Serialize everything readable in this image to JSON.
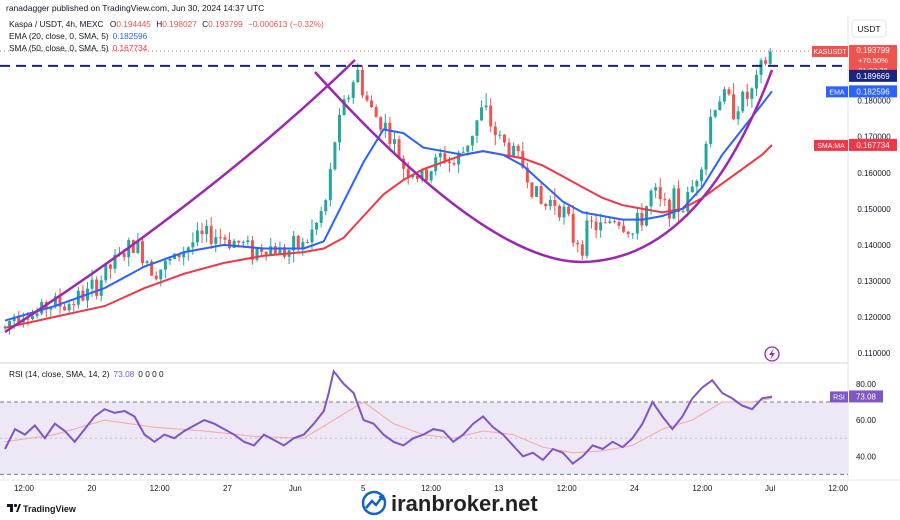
{
  "header": {
    "published": "ranadagger published on TradingView.com, Jun 30, 2024 14:37 UTC",
    "symbol_line": {
      "name": "Kaspa / USDT, 4h, MEXC",
      "o_label": "O",
      "o": "0.194445",
      "h_label": "H",
      "h": "0.198027",
      "c_label": "C",
      "c": "0.193799",
      "chg": "−0.000613 (−0.32%)"
    },
    "ema_line": {
      "label": "EMA (20, close, 0, SMA, 5)",
      "value": "0.182596"
    },
    "sma_line": {
      "label": "SMA (50, close, 0, SMA, 5)",
      "value": "0.167734"
    },
    "rsi_line": {
      "label": "RSI (14, close, SMA, 14, 2)",
      "value": "73.08",
      "extra": "0 0 0 0"
    }
  },
  "currency_button": "USDT",
  "price_tags": {
    "symbol": "KASUSDT",
    "last": "0.193799",
    "pct": "+70.50%",
    "countdown": "01:22:38",
    "line_level": "0.189669",
    "ema_tag": "EMA",
    "ema_value": "0.182596",
    "sma_tag": "SMA:MA",
    "sma_value": "0.167734",
    "rsi_tag": "RSI",
    "rsi_value": "73.08"
  },
  "footer": {
    "logo": "TradingView",
    "watermark": "iranbroker.net"
  },
  "colors": {
    "up": "#26a69a",
    "down": "#ef5350",
    "ema": "#2962ff",
    "sma": "#f23645",
    "arc": "#9c27b0",
    "level": "#1a237e",
    "rsi": "#7e57c2",
    "rsi_band": "#ede7f6"
  },
  "chart_data": [
    {
      "type": "candlestick",
      "title": "Kaspa / USDT, 4h, MEXC",
      "y_ticks": [
        "0.180000",
        "0.170000",
        "0.160000",
        "0.150000",
        "0.140000",
        "0.130000",
        "0.120000",
        "0.110000"
      ],
      "ylim": [
        0.1075,
        0.2035
      ],
      "x_ticks": [
        "12:00",
        "20",
        "12:00",
        "27",
        "Jun",
        "5",
        "12:00",
        "13",
        "12:00",
        "24",
        "12:00",
        "Jul",
        "12:00"
      ],
      "horizontal_level": 0.189669,
      "close_path": [
        [
          0,
          0.117
        ],
        [
          10,
          0.121
        ],
        [
          20,
          0.122
        ],
        [
          30,
          0.12
        ],
        [
          40,
          0.123
        ],
        [
          50,
          0.124
        ],
        [
          60,
          0.123
        ],
        [
          70,
          0.125
        ],
        [
          80,
          0.126
        ],
        [
          90,
          0.128
        ],
        [
          100,
          0.132
        ],
        [
          110,
          0.135
        ],
        [
          120,
          0.138
        ],
        [
          130,
          0.14
        ],
        [
          140,
          0.137
        ],
        [
          150,
          0.133
        ],
        [
          160,
          0.134
        ],
        [
          170,
          0.136
        ],
        [
          180,
          0.139
        ],
        [
          190,
          0.141
        ],
        [
          200,
          0.142
        ],
        [
          210,
          0.143
        ],
        [
          220,
          0.142
        ],
        [
          230,
          0.141
        ],
        [
          240,
          0.14
        ],
        [
          250,
          0.138
        ],
        [
          260,
          0.14
        ],
        [
          270,
          0.139
        ],
        [
          280,
          0.138
        ],
        [
          290,
          0.139
        ],
        [
          300,
          0.14
        ],
        [
          310,
          0.144
        ],
        [
          320,
          0.15
        ],
        [
          325,
          0.155
        ],
        [
          330,
          0.168
        ],
        [
          340,
          0.178
        ],
        [
          350,
          0.186
        ],
        [
          355,
          0.188
        ],
        [
          360,
          0.182
        ],
        [
          370,
          0.176
        ],
        [
          380,
          0.174
        ],
        [
          390,
          0.168
        ],
        [
          400,
          0.162
        ],
        [
          410,
          0.16
        ],
        [
          420,
          0.158
        ],
        [
          430,
          0.162
        ],
        [
          440,
          0.165
        ],
        [
          450,
          0.162
        ],
        [
          460,
          0.166
        ],
        [
          470,
          0.172
        ],
        [
          480,
          0.178
        ],
        [
          490,
          0.172
        ],
        [
          500,
          0.168
        ],
        [
          510,
          0.166
        ],
        [
          520,
          0.162
        ],
        [
          530,
          0.156
        ],
        [
          540,
          0.15
        ],
        [
          550,
          0.153
        ],
        [
          560,
          0.15
        ],
        [
          570,
          0.142
        ],
        [
          580,
          0.141
        ],
        [
          590,
          0.146
        ],
        [
          600,
          0.144
        ],
        [
          610,
          0.148
        ],
        [
          620,
          0.146
        ],
        [
          630,
          0.143
        ],
        [
          640,
          0.148
        ],
        [
          650,
          0.155
        ],
        [
          660,
          0.15
        ],
        [
          670,
          0.152
        ],
        [
          680,
          0.15
        ],
        [
          690,
          0.156
        ],
        [
          700,
          0.165
        ],
        [
          705,
          0.17
        ],
        [
          710,
          0.178
        ],
        [
          720,
          0.182
        ],
        [
          730,
          0.178
        ],
        [
          740,
          0.18
        ],
        [
          750,
          0.182
        ],
        [
          760,
          0.189
        ],
        [
          770,
          0.194
        ]
      ],
      "ema20": [
        [
          0,
          0.119
        ],
        [
          50,
          0.123
        ],
        [
          100,
          0.128
        ],
        [
          140,
          0.134
        ],
        [
          180,
          0.138
        ],
        [
          220,
          0.14
        ],
        [
          260,
          0.139
        ],
        [
          300,
          0.139
        ],
        [
          320,
          0.141
        ],
        [
          340,
          0.152
        ],
        [
          360,
          0.163
        ],
        [
          380,
          0.172
        ],
        [
          400,
          0.171
        ],
        [
          420,
          0.167
        ],
        [
          440,
          0.166
        ],
        [
          460,
          0.165
        ],
        [
          480,
          0.166
        ],
        [
          500,
          0.165
        ],
        [
          520,
          0.162
        ],
        [
          540,
          0.157
        ],
        [
          560,
          0.152
        ],
        [
          580,
          0.149
        ],
        [
          600,
          0.148
        ],
        [
          620,
          0.147
        ],
        [
          640,
          0.147
        ],
        [
          660,
          0.148
        ],
        [
          680,
          0.15
        ],
        [
          700,
          0.156
        ],
        [
          720,
          0.165
        ],
        [
          740,
          0.172
        ],
        [
          760,
          0.179
        ],
        [
          770,
          0.1826
        ]
      ],
      "sma50": [
        [
          0,
          0.117
        ],
        [
          50,
          0.12
        ],
        [
          100,
          0.123
        ],
        [
          140,
          0.128
        ],
        [
          180,
          0.132
        ],
        [
          220,
          0.135
        ],
        [
          260,
          0.137
        ],
        [
          300,
          0.138
        ],
        [
          320,
          0.139
        ],
        [
          340,
          0.142
        ],
        [
          360,
          0.148
        ],
        [
          380,
          0.154
        ],
        [
          400,
          0.158
        ],
        [
          420,
          0.161
        ],
        [
          440,
          0.163
        ],
        [
          460,
          0.165
        ],
        [
          480,
          0.166
        ],
        [
          500,
          0.165
        ],
        [
          520,
          0.164
        ],
        [
          540,
          0.162
        ],
        [
          560,
          0.159
        ],
        [
          580,
          0.156
        ],
        [
          600,
          0.153
        ],
        [
          620,
          0.151
        ],
        [
          640,
          0.15
        ],
        [
          660,
          0.149
        ],
        [
          680,
          0.15
        ],
        [
          700,
          0.153
        ],
        [
          720,
          0.157
        ],
        [
          740,
          0.161
        ],
        [
          760,
          0.165
        ],
        [
          770,
          0.1677
        ]
      ]
    },
    {
      "type": "line",
      "title": "RSI (14, close, SMA, 14, 2)",
      "y_ticks": [
        "80.00",
        "60.00",
        "40.00"
      ],
      "ylim": [
        28,
        91
      ],
      "band": [
        30,
        70
      ],
      "rsi": [
        [
          0,
          44
        ],
        [
          10,
          55
        ],
        [
          20,
          52
        ],
        [
          30,
          57
        ],
        [
          40,
          50
        ],
        [
          50,
          58
        ],
        [
          60,
          54
        ],
        [
          70,
          48
        ],
        [
          80,
          55
        ],
        [
          90,
          62
        ],
        [
          100,
          66
        ],
        [
          110,
          64
        ],
        [
          120,
          65
        ],
        [
          130,
          62
        ],
        [
          140,
          52
        ],
        [
          150,
          48
        ],
        [
          160,
          52
        ],
        [
          170,
          50
        ],
        [
          180,
          54
        ],
        [
          190,
          57
        ],
        [
          200,
          60
        ],
        [
          210,
          58
        ],
        [
          220,
          55
        ],
        [
          230,
          52
        ],
        [
          240,
          48
        ],
        [
          250,
          46
        ],
        [
          260,
          52
        ],
        [
          270,
          49
        ],
        [
          280,
          46
        ],
        [
          290,
          50
        ],
        [
          300,
          52
        ],
        [
          310,
          58
        ],
        [
          320,
          65
        ],
        [
          325,
          75
        ],
        [
          330,
          87
        ],
        [
          340,
          80
        ],
        [
          350,
          75
        ],
        [
          360,
          60
        ],
        [
          370,
          58
        ],
        [
          380,
          52
        ],
        [
          390,
          48
        ],
        [
          400,
          46
        ],
        [
          410,
          50
        ],
        [
          420,
          52
        ],
        [
          430,
          55
        ],
        [
          440,
          54
        ],
        [
          450,
          48
        ],
        [
          460,
          52
        ],
        [
          470,
          58
        ],
        [
          480,
          62
        ],
        [
          490,
          56
        ],
        [
          500,
          52
        ],
        [
          510,
          46
        ],
        [
          520,
          40
        ],
        [
          530,
          42
        ],
        [
          540,
          38
        ],
        [
          550,
          44
        ],
        [
          560,
          42
        ],
        [
          570,
          36
        ],
        [
          580,
          40
        ],
        [
          590,
          46
        ],
        [
          600,
          44
        ],
        [
          610,
          48
        ],
        [
          620,
          45
        ],
        [
          630,
          50
        ],
        [
          640,
          58
        ],
        [
          650,
          70
        ],
        [
          660,
          62
        ],
        [
          670,
          55
        ],
        [
          680,
          62
        ],
        [
          690,
          72
        ],
        [
          700,
          78
        ],
        [
          710,
          82
        ],
        [
          720,
          75
        ],
        [
          730,
          72
        ],
        [
          740,
          68
        ],
        [
          750,
          66
        ],
        [
          760,
          72
        ],
        [
          770,
          73
        ]
      ],
      "rsi_ma": [
        [
          0,
          48
        ],
        [
          50,
          52
        ],
        [
          100,
          60
        ],
        [
          150,
          56
        ],
        [
          200,
          54
        ],
        [
          250,
          51
        ],
        [
          300,
          50
        ],
        [
          330,
          60
        ],
        [
          360,
          70
        ],
        [
          390,
          58
        ],
        [
          420,
          52
        ],
        [
          450,
          50
        ],
        [
          480,
          54
        ],
        [
          510,
          52
        ],
        [
          540,
          45
        ],
        [
          570,
          42
        ],
        [
          600,
          43
        ],
        [
          630,
          46
        ],
        [
          660,
          55
        ],
        [
          690,
          60
        ],
        [
          720,
          70
        ],
        [
          750,
          70
        ],
        [
          770,
          72
        ]
      ]
    }
  ]
}
